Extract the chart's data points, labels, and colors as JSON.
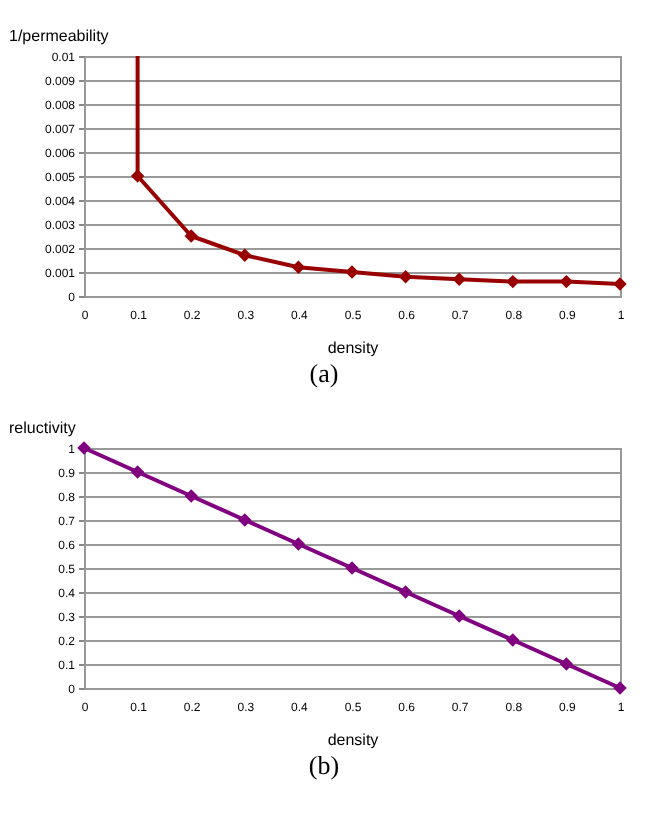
{
  "chart_data": [
    {
      "type": "line",
      "ylabel": "1/permeability",
      "xlabel": "density",
      "annotations": [
        "(a)"
      ],
      "xlim": [
        0,
        1
      ],
      "xticks": [
        0,
        0.1,
        0.2,
        0.3,
        0.4,
        0.5,
        0.6,
        0.7,
        0.8,
        0.9,
        1
      ],
      "ylim": [
        0,
        0.01
      ],
      "yticks": [
        0,
        0.001,
        0.002,
        0.003,
        0.004,
        0.005,
        0.006,
        0.007,
        0.008,
        0.009,
        0.01
      ],
      "grid": "y",
      "marker": "diamond",
      "line_style": "solid",
      "series": [
        {
          "color": "#990000",
          "x": [
            0.1,
            0.2,
            0.3,
            0.4,
            0.5,
            0.6,
            0.7,
            0.8,
            0.9,
            1
          ],
          "values": [
            0.005,
            0.0025,
            0.0017,
            0.0012,
            0.001,
            0.0008,
            0.0007,
            0.0006,
            0.0006,
            0.0005
          ]
        },
        {
          "color": "#990000",
          "marker": "none",
          "x": [
            0.1,
            0.1
          ],
          "values": [
            0.01,
            0.005
          ]
        }
      ]
    },
    {
      "type": "line",
      "ylabel": "reluctivity",
      "xlabel": "density",
      "annotations": [
        "(b)"
      ],
      "xlim": [
        0,
        1
      ],
      "xticks": [
        0,
        0.1,
        0.2,
        0.3,
        0.4,
        0.5,
        0.6,
        0.7,
        0.8,
        0.9,
        1
      ],
      "ylim": [
        0,
        1
      ],
      "yticks": [
        0,
        0.1,
        0.2,
        0.3,
        0.4,
        0.5,
        0.6,
        0.7,
        0.8,
        0.9,
        1
      ],
      "grid": "y",
      "marker": "diamond",
      "line_style": "solid",
      "series": [
        {
          "color": "#800080",
          "x": [
            0,
            0.1,
            0.2,
            0.3,
            0.4,
            0.5,
            0.6,
            0.7,
            0.8,
            0.9,
            1
          ],
          "values": [
            1,
            0.9,
            0.8,
            0.7,
            0.6,
            0.5,
            0.4,
            0.3,
            0.2,
            0.1,
            0
          ]
        }
      ]
    }
  ]
}
